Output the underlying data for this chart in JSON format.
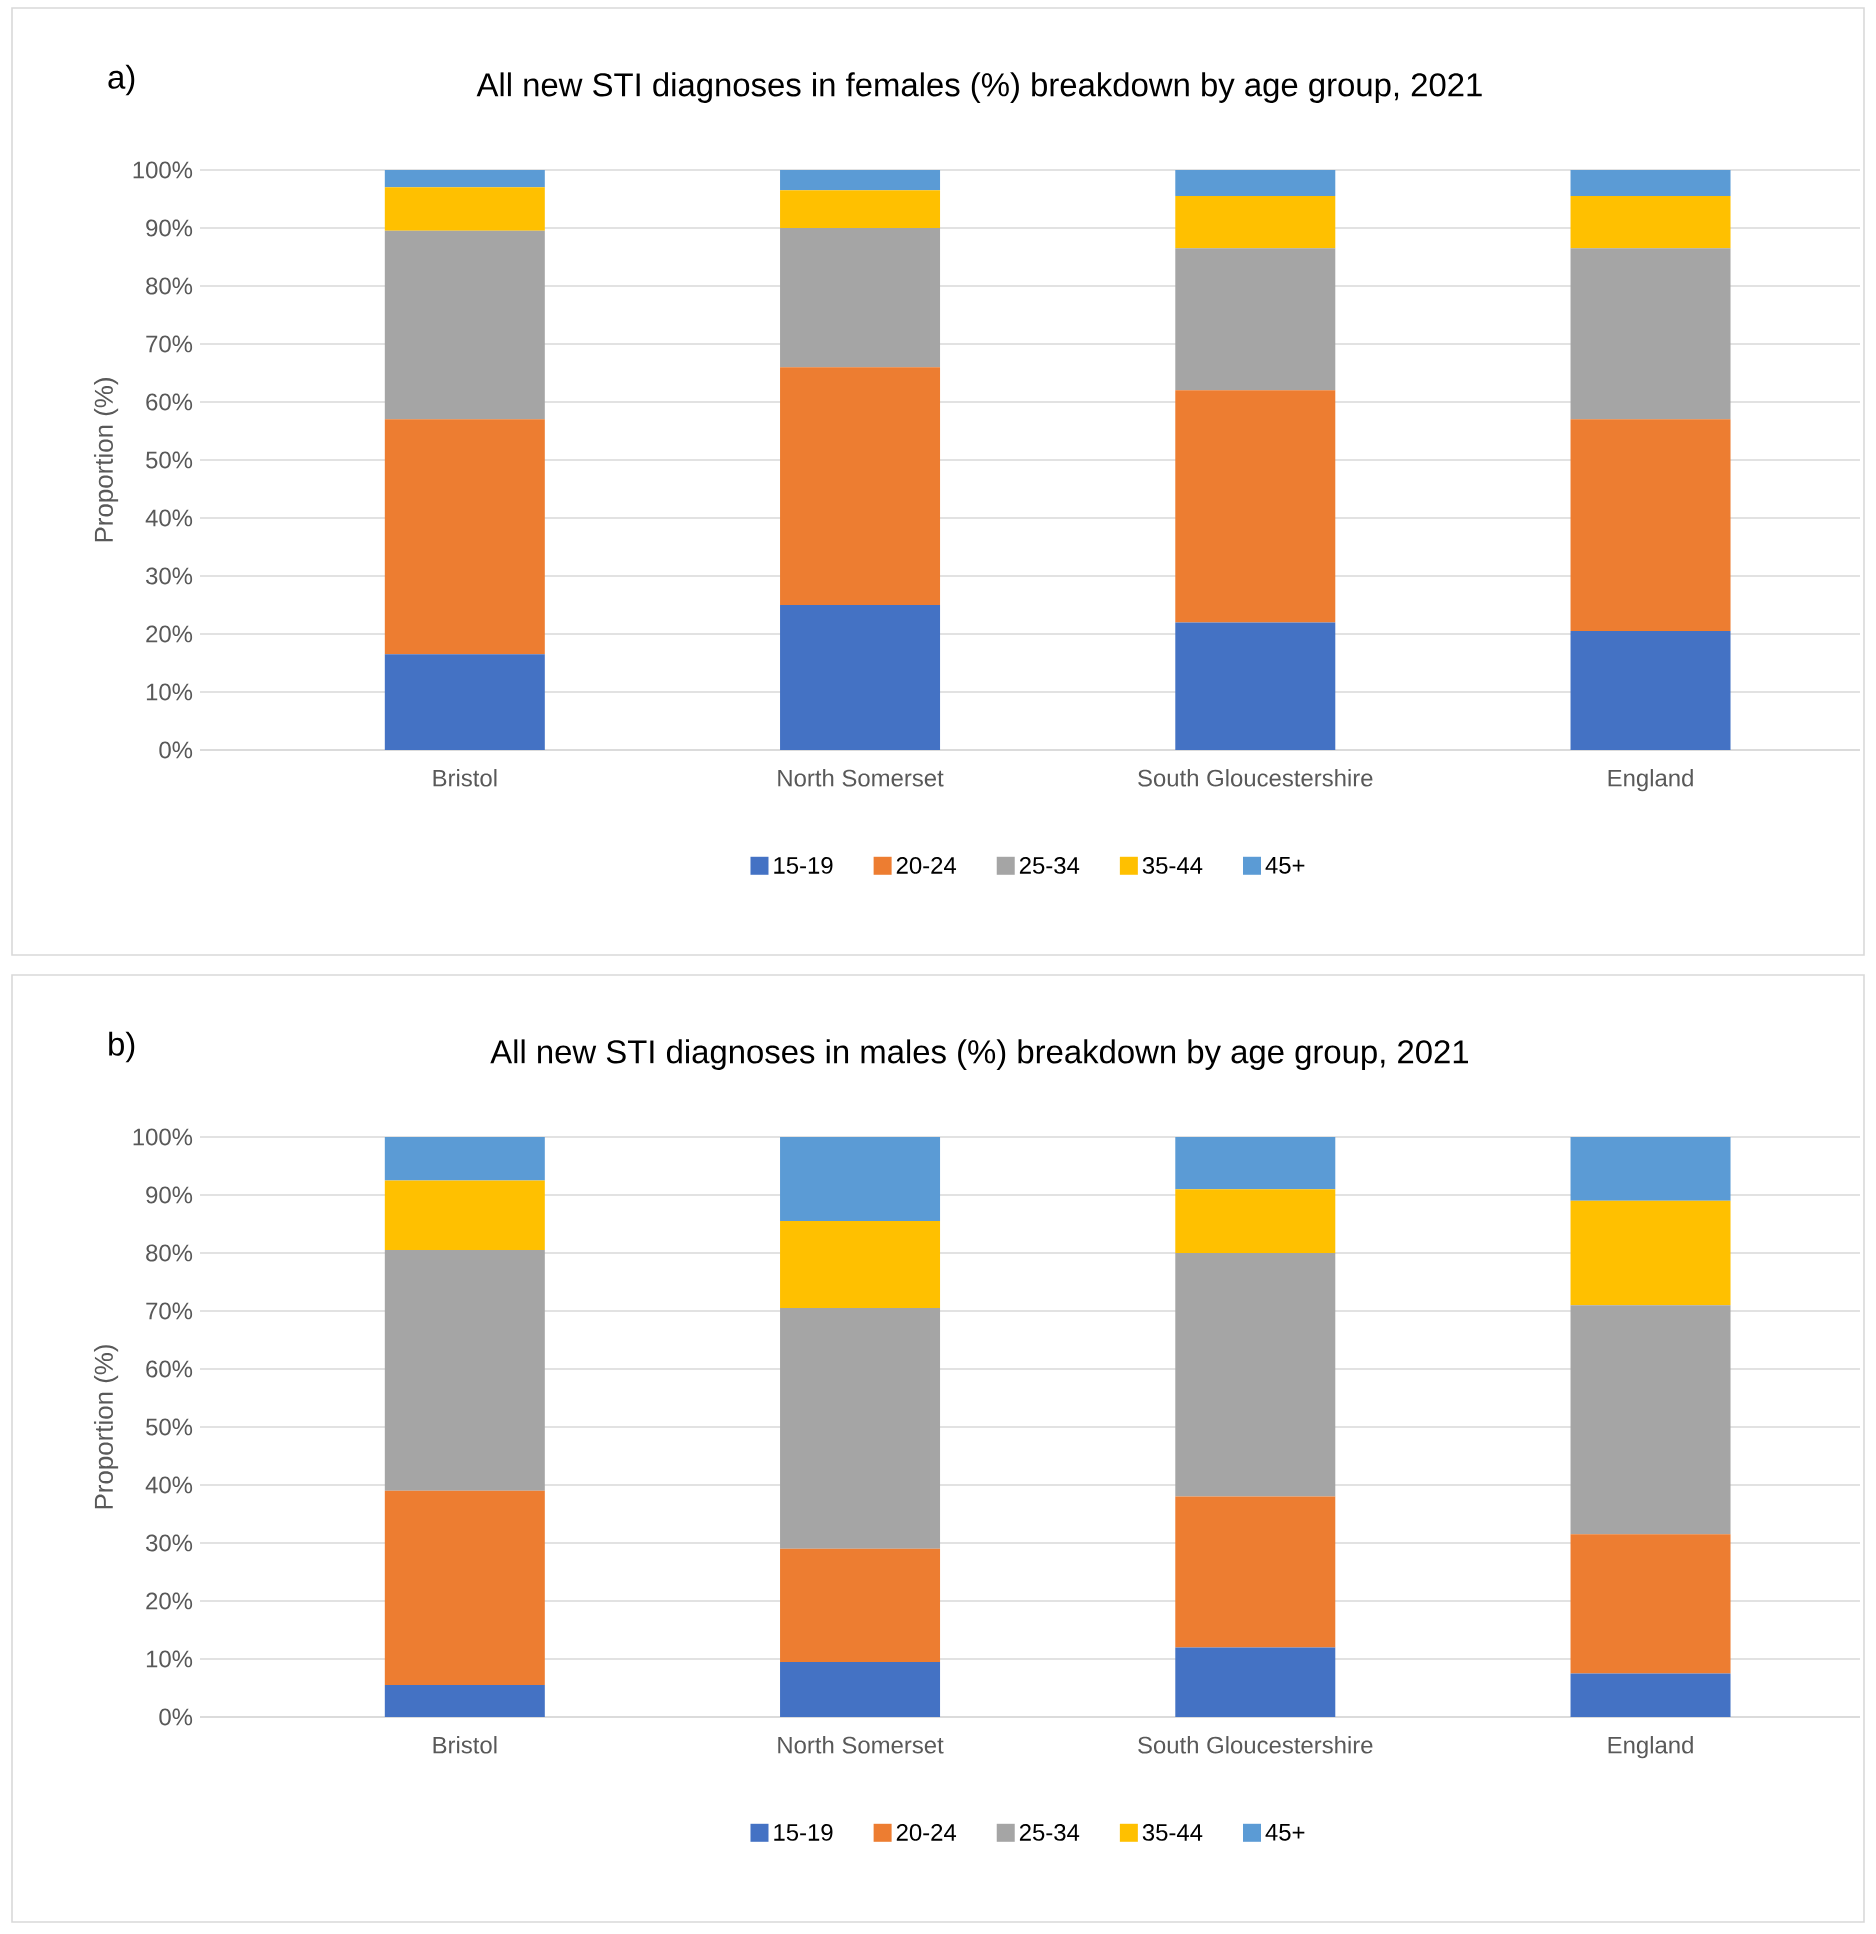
{
  "chart_data": [
    {
      "type": "bar",
      "stacked": true,
      "title": "All new STI diagnoses in females (%) breakdown by age group, 2021",
      "annotations": [
        "a)"
      ],
      "ylabel": "Proportion (%)",
      "categories": [
        "Bristol",
        "North Somerset",
        "South Gloucestershire",
        "England"
      ],
      "series": [
        {
          "name": "15-19",
          "color": "#4472c4",
          "values": [
            16.5,
            25,
            22,
            20.5
          ]
        },
        {
          "name": "20-24",
          "color": "#ed7d31",
          "values": [
            40.5,
            41,
            40,
            36.5
          ]
        },
        {
          "name": "25-34",
          "color": "#a5a5a5",
          "values": [
            32.5,
            24,
            24.5,
            29.5
          ]
        },
        {
          "name": "35-44",
          "color": "#ffc000",
          "values": [
            7.5,
            6.5,
            9,
            9
          ]
        },
        {
          "name": "45+",
          "color": "#5b9bd5",
          "values": [
            3,
            3.5,
            4.5,
            4.5
          ]
        }
      ],
      "ylim": [
        0,
        100
      ],
      "yticks": [
        {
          "value": 0,
          "label": "0%"
        },
        {
          "value": 10,
          "label": "10%"
        },
        {
          "value": 20,
          "label": "20%"
        },
        {
          "value": 30,
          "label": "30%"
        },
        {
          "value": 40,
          "label": "40%"
        },
        {
          "value": 50,
          "label": "50%"
        },
        {
          "value": 60,
          "label": "60%"
        },
        {
          "value": 70,
          "label": "70%"
        },
        {
          "value": 80,
          "label": "80%"
        },
        {
          "value": 90,
          "label": "90%"
        },
        {
          "value": 100,
          "label": "100%"
        }
      ],
      "grid": "y",
      "legend": "bottom"
    },
    {
      "type": "bar",
      "stacked": true,
      "title": "All new STI diagnoses in males (%) breakdown by age group, 2021",
      "annotations": [
        "b)"
      ],
      "ylabel": "Proportion (%)",
      "categories": [
        "Bristol",
        "North Somerset",
        "South Gloucestershire",
        "England"
      ],
      "series": [
        {
          "name": "15-19",
          "color": "#4472c4",
          "values": [
            5.5,
            9.5,
            12,
            7.5
          ]
        },
        {
          "name": "20-24",
          "color": "#ed7d31",
          "values": [
            33.5,
            19.5,
            26,
            24
          ]
        },
        {
          "name": "25-34",
          "color": "#a5a5a5",
          "values": [
            41.5,
            41.5,
            42,
            39.5
          ]
        },
        {
          "name": "35-44",
          "color": "#ffc000",
          "values": [
            12,
            15,
            11,
            18
          ]
        },
        {
          "name": "45+",
          "color": "#5b9bd5",
          "values": [
            7.5,
            14.5,
            9,
            11
          ]
        }
      ],
      "ylim": [
        0,
        100
      ],
      "yticks": [
        {
          "value": 0,
          "label": "0%"
        },
        {
          "value": 10,
          "label": "10%"
        },
        {
          "value": 20,
          "label": "20%"
        },
        {
          "value": 30,
          "label": "30%"
        },
        {
          "value": 40,
          "label": "40%"
        },
        {
          "value": 50,
          "label": "50%"
        },
        {
          "value": 60,
          "label": "60%"
        },
        {
          "value": 70,
          "label": "70%"
        },
        {
          "value": 80,
          "label": "80%"
        },
        {
          "value": 90,
          "label": "90%"
        },
        {
          "value": 100,
          "label": "100%"
        }
      ],
      "grid": "y",
      "legend": "bottom"
    }
  ]
}
